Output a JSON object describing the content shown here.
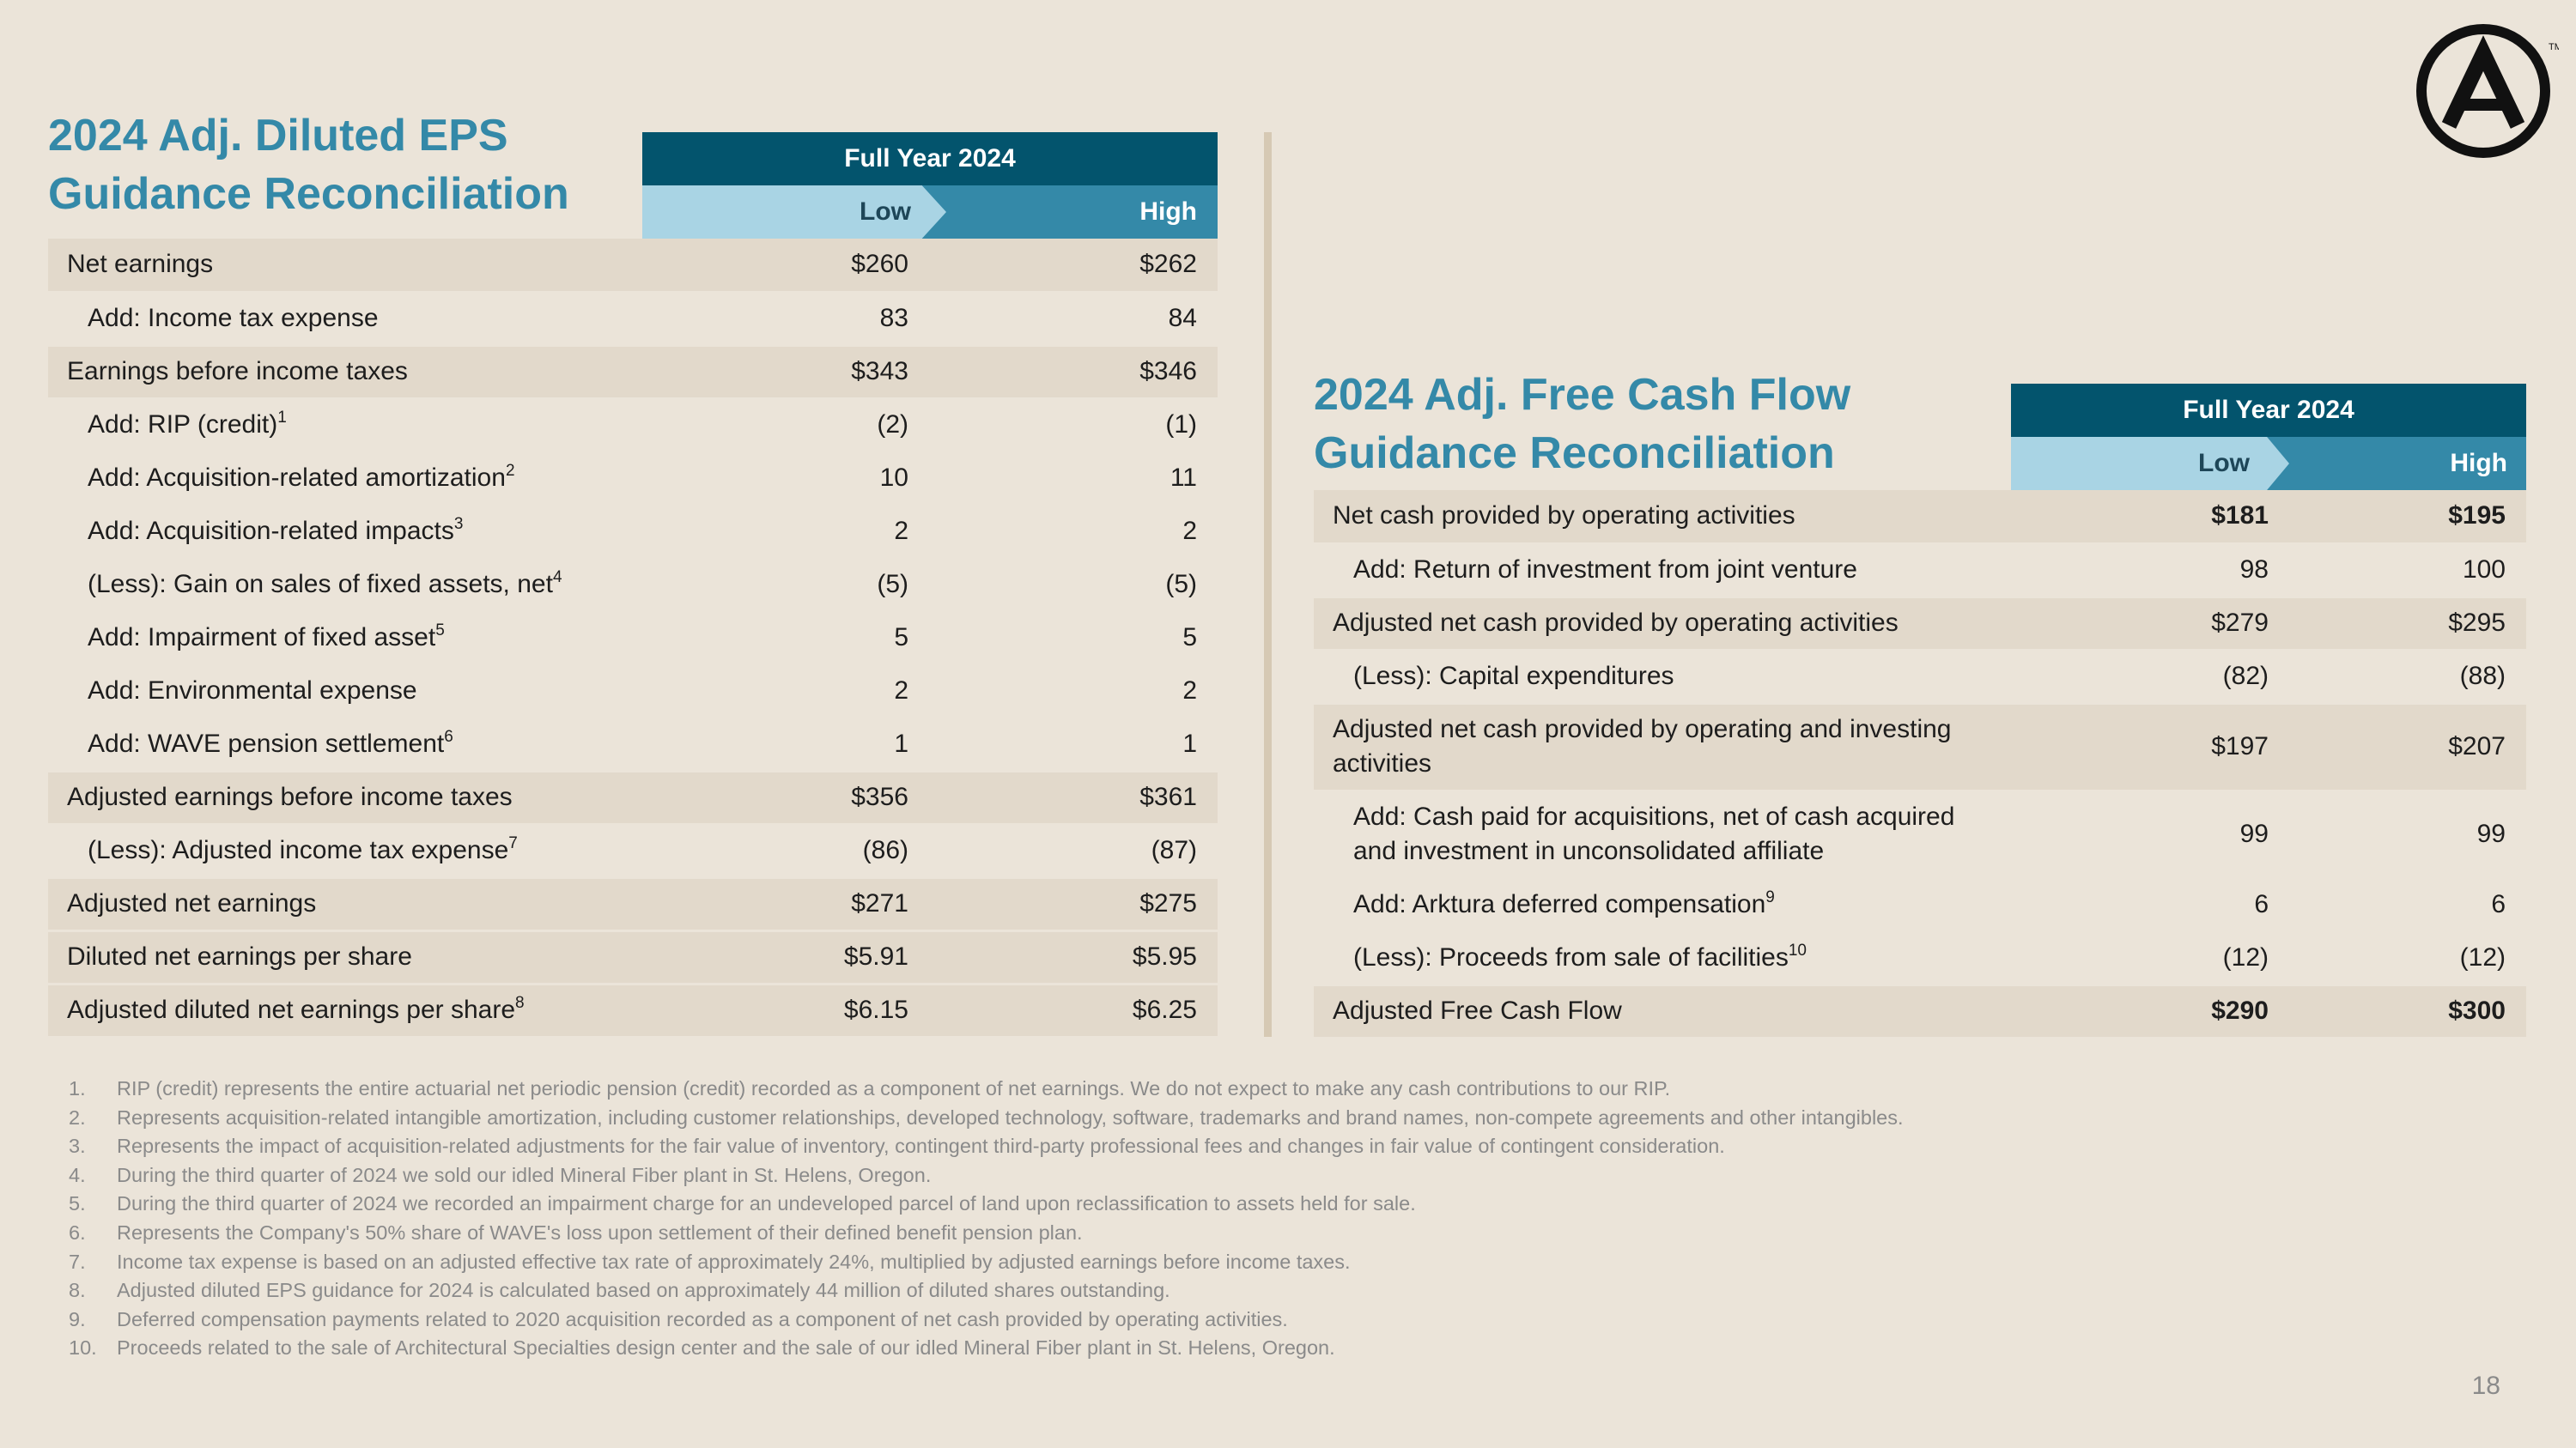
{
  "eps": {
    "title_line1": "2024 Adj. Diluted EPS",
    "title_line2": "Guidance Reconciliation",
    "head_full": "Full Year 2024",
    "head_low": "Low",
    "head_high": "High",
    "rows": [
      {
        "label": "Net earnings",
        "sup": "",
        "low": "$260",
        "high": "$262"
      },
      {
        "label": "Add: Income tax expense",
        "sup": "",
        "low": "83",
        "high": "84"
      },
      {
        "label": "Earnings before income taxes",
        "sup": "",
        "low": "$343",
        "high": "$346"
      },
      {
        "label": "Add: RIP (credit)",
        "sup": "1",
        "low": "(2)",
        "high": "(1)"
      },
      {
        "label": "Add: Acquisition-related amortization",
        "sup": "2",
        "low": "10",
        "high": "11"
      },
      {
        "label": "Add: Acquisition-related impacts",
        "sup": "3",
        "low": "2",
        "high": "2"
      },
      {
        "label": "(Less): Gain on sales of fixed assets, net",
        "sup": "4",
        "low": "(5)",
        "high": "(5)"
      },
      {
        "label": "Add: Impairment of fixed asset",
        "sup": "5",
        "low": "5",
        "high": "5"
      },
      {
        "label": "Add: Environmental expense",
        "sup": "",
        "low": "2",
        "high": "2"
      },
      {
        "label": "Add: WAVE pension settlement",
        "sup": "6",
        "low": "1",
        "high": "1"
      },
      {
        "label": "Adjusted earnings before income taxes",
        "sup": "",
        "low": "$356",
        "high": "$361"
      },
      {
        "label": "(Less): Adjusted income tax expense",
        "sup": "7",
        "low": "(86)",
        "high": "(87)"
      },
      {
        "label": "Adjusted net earnings",
        "sup": "",
        "low": "$271",
        "high": "$275"
      },
      {
        "label": "Diluted net earnings per share",
        "sup": "",
        "low": "$5.91",
        "high": "$5.95"
      },
      {
        "label": "Adjusted diluted net earnings per share",
        "sup": "8",
        "low": "$6.15",
        "high": "$6.25"
      }
    ]
  },
  "fcf": {
    "title_line1": "2024 Adj. Free Cash Flow",
    "title_line2": "Guidance Reconciliation",
    "head_full": "Full Year 2024",
    "head_low": "Low",
    "head_high": "High",
    "rows": [
      {
        "label": "Net cash provided by operating activities",
        "sup": "",
        "low": "$181",
        "high": "$195"
      },
      {
        "label": "Add: Return of investment from joint venture",
        "sup": "",
        "low": "98",
        "high": "100"
      },
      {
        "label": "Adjusted net cash provided by operating activities",
        "sup": "",
        "low": "$279",
        "high": "$295"
      },
      {
        "label": "(Less): Capital expenditures",
        "sup": "",
        "low": "(82)",
        "high": "(88)"
      },
      {
        "label_line1": "Adjusted net cash provided by operating and investing",
        "label_line2": "activities",
        "low": "$197",
        "high": "$207"
      },
      {
        "label_line1": "Add: Cash paid for acquisitions, net of cash acquired",
        "label_line2": "and investment in unconsolidated affiliate",
        "low": "99",
        "high": "99"
      },
      {
        "label": "Add: Arktura deferred compensation",
        "sup": "9",
        "low": "6",
        "high": "6"
      },
      {
        "label": "(Less): Proceeds from sale of facilities",
        "sup": "10",
        "low": "(12)",
        "high": "(12)"
      },
      {
        "label": "Adjusted Free Cash Flow",
        "sup": "",
        "low": "$290",
        "high": "$300"
      }
    ]
  },
  "footnotes": [
    {
      "num": "1.",
      "text": "RIP (credit) represents the entire actuarial net periodic pension (credit) recorded as a component of net earnings. We do not expect to make any cash contributions to our RIP."
    },
    {
      "num": "2.",
      "text": "Represents acquisition-related intangible amortization, including customer relationships, developed technology, software, trademarks and brand names, non-compete agreements and other intangibles."
    },
    {
      "num": "3.",
      "text": "Represents the impact of acquisition-related adjustments for the fair value of inventory, contingent third-party professional fees and changes in fair value of contingent consideration."
    },
    {
      "num": "4.",
      "text": "During the third quarter of 2024 we sold our idled Mineral Fiber plant in St. Helens, Oregon."
    },
    {
      "num": "5.",
      "text": "During the third quarter of 2024 we recorded an impairment charge for an undeveloped parcel of land upon reclassification to assets held for sale."
    },
    {
      "num": "6.",
      "text": "Represents the Company's 50% share of WAVE's loss upon settlement of their defined benefit pension plan."
    },
    {
      "num": "7.",
      "text": "Income tax expense is based on an adjusted effective tax rate of approximately 24%, multiplied by adjusted earnings before income taxes."
    },
    {
      "num": "8.",
      "text": "Adjusted diluted EPS guidance for 2024 is calculated based on approximately 44 million of diluted shares outstanding."
    },
    {
      "num": "9.",
      "text": "Deferred compensation payments related to 2020 acquisition recorded as a component of net cash provided by operating activities."
    },
    {
      "num": "10.",
      "text": "Proceeds related to the sale of Architectural Specialties design center and the sale of our idled Mineral Fiber plant in St. Helens, Oregon."
    }
  ],
  "page_number": "18",
  "logo": {
    "icon": "armstrong-logo-icon",
    "mark": "TM"
  },
  "colors": {
    "background": "#ebe4d9",
    "title": "#3489a8",
    "header_dark": "#03546d",
    "header_light": "#a9d4e4",
    "row_shade": "#e2d9cb"
  }
}
